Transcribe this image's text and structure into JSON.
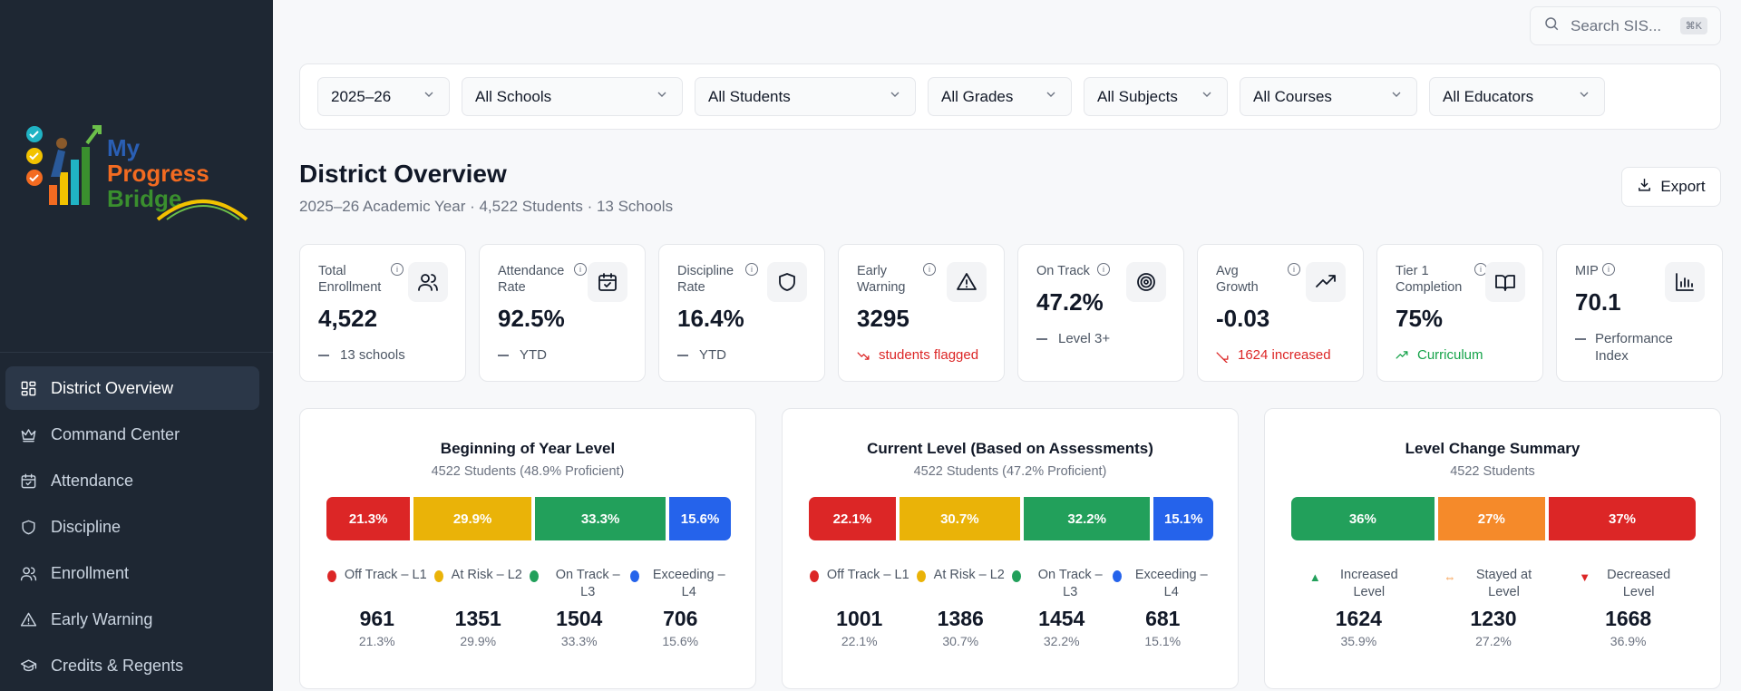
{
  "app": {
    "logo": {
      "line1": "My",
      "line2": "Progress",
      "line3": "Bridge"
    }
  },
  "sidebar": {
    "items": [
      {
        "label": "District Overview",
        "icon": "dashboard-icon",
        "active": true
      },
      {
        "label": "Command Center",
        "icon": "crown-icon",
        "active": false
      },
      {
        "label": "Attendance",
        "icon": "calendar-check-icon",
        "active": false
      },
      {
        "label": "Discipline",
        "icon": "shield-icon",
        "active": false
      },
      {
        "label": "Enrollment",
        "icon": "users-icon",
        "active": false
      },
      {
        "label": "Early Warning",
        "icon": "warning-triangle-icon",
        "active": false
      },
      {
        "label": "Credits & Regents",
        "icon": "graduation-cap-icon",
        "active": false
      }
    ]
  },
  "search": {
    "placeholder": "Search SIS...",
    "shortcut": "⌘K"
  },
  "filters": [
    {
      "value": "2025–26"
    },
    {
      "value": "All Schools"
    },
    {
      "value": "All Students"
    },
    {
      "value": "All Grades"
    },
    {
      "value": "All Subjects"
    },
    {
      "value": "All Courses"
    },
    {
      "value": "All Educators"
    }
  ],
  "header": {
    "title": "District Overview",
    "subtitle": "2025–26 Academic Year · 4,522 Students · 13 Schools",
    "export_label": "Export"
  },
  "kpis": [
    {
      "label": "Total Enrollment",
      "value": "4,522",
      "foot": "13 schools",
      "trend": "neutral",
      "icon": "users-icon"
    },
    {
      "label": "Attendance Rate",
      "value": "92.5%",
      "foot": "YTD",
      "trend": "neutral",
      "icon": "calendar-check-icon"
    },
    {
      "label": "Discipline Rate",
      "value": "16.4%",
      "foot": "YTD",
      "trend": "neutral",
      "icon": "shield-icon"
    },
    {
      "label": "Early Warning",
      "value": "3295",
      "foot": "students flagged",
      "trend": "down",
      "icon": "warning-triangle-icon"
    },
    {
      "label": "On Track",
      "value": "47.2%",
      "foot": "Level 3+",
      "trend": "neutral",
      "icon": "target-icon"
    },
    {
      "label": "Avg Growth",
      "value": "-0.03",
      "foot": "1624 increased",
      "trend": "down",
      "icon": "trending-up-icon"
    },
    {
      "label": "Tier 1 Completion",
      "value": "75%",
      "foot": "Curriculum",
      "trend": "up",
      "icon": "book-open-icon"
    },
    {
      "label": "MIP",
      "value": "70.1",
      "foot": "Performance Index",
      "trend": "neutral",
      "icon": "bar-chart-icon"
    }
  ],
  "colors": {
    "red": "#dc2626",
    "yellow": "#eab308",
    "green": "#22a05b",
    "blue": "#2563eb",
    "orange": "#f58a2a"
  },
  "panels": [
    {
      "title": "Beginning of Year Level",
      "subtitle": "4522 Students (48.9% Proficient)",
      "segments": [
        {
          "label": "21.3%",
          "share": 21.3,
          "color": "#dc2626"
        },
        {
          "label": "29.9%",
          "share": 29.9,
          "color": "#eab308"
        },
        {
          "label": "33.3%",
          "share": 33.3,
          "color": "#22a05b"
        },
        {
          "label": "15.6%",
          "share": 15.6,
          "color": "#2563eb"
        }
      ],
      "legend": [
        {
          "label": "Off Track – L1",
          "count": "961",
          "pct": "21.3%",
          "color": "#dc2626"
        },
        {
          "label": "At Risk – L2",
          "count": "1351",
          "pct": "29.9%",
          "color": "#eab308"
        },
        {
          "label": "On Track – L3",
          "count": "1504",
          "pct": "33.3%",
          "color": "#22a05b"
        },
        {
          "label": "Exceeding – L4",
          "count": "706",
          "pct": "15.6%",
          "color": "#2563eb"
        }
      ]
    },
    {
      "title": "Current Level (Based on Assessments)",
      "subtitle": "4522 Students (47.2% Proficient)",
      "segments": [
        {
          "label": "22.1%",
          "share": 22.1,
          "color": "#dc2626"
        },
        {
          "label": "30.7%",
          "share": 30.7,
          "color": "#eab308"
        },
        {
          "label": "32.2%",
          "share": 32.2,
          "color": "#22a05b"
        },
        {
          "label": "15.1%",
          "share": 15.1,
          "color": "#2563eb"
        }
      ],
      "legend": [
        {
          "label": "Off Track – L1",
          "count": "1001",
          "pct": "22.1%",
          "color": "#dc2626"
        },
        {
          "label": "At Risk – L2",
          "count": "1386",
          "pct": "30.7%",
          "color": "#eab308"
        },
        {
          "label": "On Track – L3",
          "count": "1454",
          "pct": "32.2%",
          "color": "#22a05b"
        },
        {
          "label": "Exceeding – L4",
          "count": "681",
          "pct": "15.1%",
          "color": "#2563eb"
        }
      ]
    },
    {
      "title": "Level Change Summary",
      "subtitle": "4522 Students",
      "segments": [
        {
          "label": "36%",
          "share": 36,
          "color": "#22a05b"
        },
        {
          "label": "27%",
          "share": 27,
          "color": "#f58a2a"
        },
        {
          "label": "37%",
          "share": 37,
          "color": "#dc2626"
        }
      ],
      "legend": [
        {
          "label": "Increased Level",
          "count": "1624",
          "pct": "35.9%",
          "color": "#22a05b",
          "marker": "▲"
        },
        {
          "label": "Stayed at Level",
          "count": "1230",
          "pct": "27.2%",
          "color": "#f58a2a",
          "marker": "⇔"
        },
        {
          "label": "Decreased Level",
          "count": "1668",
          "pct": "36.9%",
          "color": "#dc2626",
          "marker": "▼"
        }
      ]
    }
  ]
}
